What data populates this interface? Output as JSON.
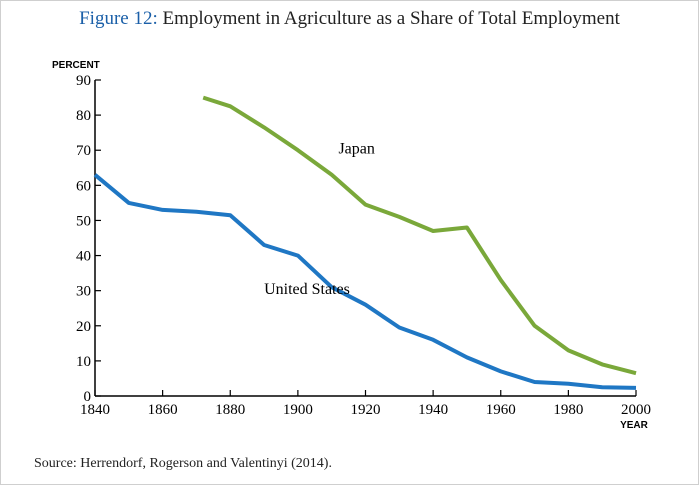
{
  "title": {
    "lead": "Figure 12:",
    "text": "Employment in Agriculture as a Share of Total Employment"
  },
  "source": "Source: Herrendorf, Rogerson and Valentinyi (2014).",
  "colors": {
    "japan": "#7aa83a",
    "us": "#1f77c4",
    "axis": "#000000",
    "title_lead": "#1a5fa8"
  },
  "chart_data": {
    "type": "line",
    "title": "Employment in Agriculture as a Share of Total Employment",
    "ylabel": "PERCENT",
    "xlabel": "YEAR",
    "xlim": [
      1840,
      2000
    ],
    "ylim": [
      0,
      90
    ],
    "xticks": [
      1840,
      1860,
      1880,
      1900,
      1920,
      1940,
      1960,
      1980,
      2000
    ],
    "yticks": [
      0,
      10,
      20,
      30,
      40,
      50,
      60,
      70,
      80,
      90
    ],
    "grid": false,
    "series": [
      {
        "name": "United States",
        "color": "#1f77c4",
        "x": [
          1840,
          1850,
          1860,
          1870,
          1880,
          1890,
          1900,
          1910,
          1920,
          1930,
          1940,
          1950,
          1960,
          1970,
          1980,
          1990,
          2000
        ],
        "y": [
          63,
          55,
          53,
          52.5,
          51.5,
          43,
          40,
          31,
          26,
          19.5,
          16,
          11,
          7,
          4,
          3.5,
          2.5,
          2.3
        ]
      },
      {
        "name": "Japan",
        "color": "#7aa83a",
        "x": [
          1872,
          1880,
          1890,
          1900,
          1910,
          1920,
          1930,
          1940,
          1950,
          1960,
          1970,
          1980,
          1990,
          2000
        ],
        "y": [
          85,
          82.5,
          76.5,
          70,
          63,
          54.5,
          51,
          47,
          48,
          33,
          20,
          13,
          9,
          6.5
        ]
      }
    ],
    "annotations": [
      {
        "text": "Japan",
        "series": "Japan",
        "x": 1912,
        "y": 69
      },
      {
        "text": "United States",
        "series": "United States",
        "x": 1890,
        "y": 29
      }
    ]
  }
}
